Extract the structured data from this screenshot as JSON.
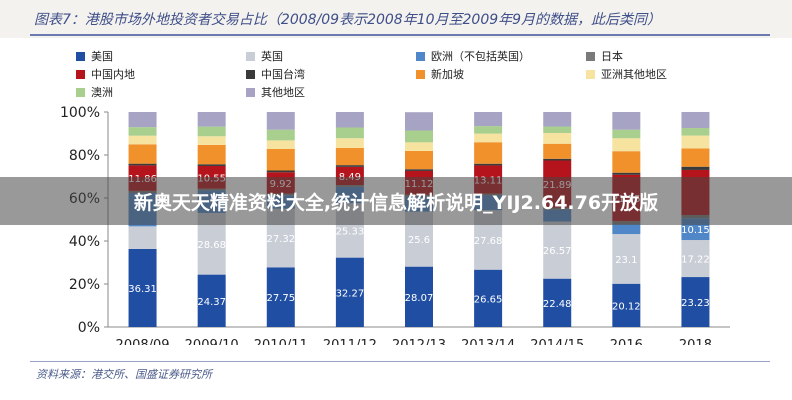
{
  "figure": {
    "title": "图表7：港股市场外地投资者交易占比（2008/09表示2008年10月至2009年9月的数据，此后类同）",
    "source": "资料来源：港交所、国盛证券研究所"
  },
  "watermark": {
    "text": "新奥天天精准资料大全,统计信息解析说明_YIJ2.64.76开放版"
  },
  "chart_data": {
    "type": "bar",
    "stacked": true,
    "categories": [
      "2008/09",
      "2009/10",
      "2010/11",
      "2011/12",
      "2012/13",
      "2013/14",
      "2014/15",
      "2016",
      "2018"
    ],
    "ylim": [
      0,
      100
    ],
    "yticks": [
      "0%",
      "20%",
      "40%",
      "60%",
      "80%",
      "100%"
    ],
    "grid": false,
    "legend_position": "top",
    "series": [
      {
        "name": "美国",
        "color": "#1f4ea3",
        "values": [
          36.31,
          24.37,
          27.75,
          32.27,
          28.07,
          26.65,
          22.48,
          20.12,
          23.23
        ],
        "labels": [
          "36.31",
          "24.37",
          "27.75",
          "32.27",
          "28.07",
          "26.65",
          "22.48",
          "20.12",
          "23.23"
        ]
      },
      {
        "name": "英国",
        "color": "#c9cdd6",
        "values": [
          10.5,
          28.68,
          27.32,
          25.33,
          25.6,
          27.68,
          26.57,
          23.1,
          17.22
        ],
        "labels": [
          "",
          "28.68",
          "27.32",
          "25.33",
          "25.6",
          "27.68",
          "26.57",
          "23.1",
          "17.22"
        ]
      },
      {
        "name": "欧洲（不包括英国）",
        "color": "#4f87c9",
        "values": [
          15.5,
          10.5,
          6.2,
          7.6,
          7.0,
          6.8,
          5.5,
          4.5,
          10.15
        ],
        "labels": [
          "",
          "",
          "",
          "",
          "",
          "",
          "",
          "",
          "10.15"
        ]
      },
      {
        "name": "日本",
        "color": "#7a7a7a",
        "values": [
          1.0,
          0.8,
          0.8,
          0.8,
          0.8,
          0.9,
          1.0,
          1.5,
          1.5
        ],
        "labels": [
          "",
          "",
          "",
          "",
          "",
          "",
          "",
          "",
          ""
        ]
      },
      {
        "name": "中国内地",
        "color": "#b5141c",
        "values": [
          11.86,
          10.55,
          9.92,
          8.49,
          11.12,
          13.11,
          21.89,
          21.55,
          20.95
        ],
        "labels": [
          "11.86",
          "10.55",
          "9.92",
          "8.49",
          "11.12",
          "13.11",
          "21.89",
          "21.55",
          ""
        ]
      },
      {
        "name": "中国台湾",
        "color": "#3a3a3a",
        "values": [
          0.8,
          0.8,
          0.8,
          0.8,
          0.8,
          0.8,
          0.8,
          1.0,
          1.5
        ],
        "labels": [
          "",
          "",
          "",
          "",
          "",
          "",
          "",
          "",
          ""
        ]
      },
      {
        "name": "新加坡",
        "color": "#f0912b",
        "values": [
          9.0,
          9.0,
          10.0,
          8.0,
          8.5,
          10.0,
          7.0,
          10.0,
          8.5
        ],
        "labels": [
          "",
          "",
          "",
          "",
          "",
          "",
          "",
          "",
          ""
        ]
      },
      {
        "name": "亚洲其他地区",
        "color": "#f7e3a0",
        "values": [
          4.0,
          4.0,
          4.0,
          4.5,
          4.0,
          4.0,
          5.0,
          6.0,
          6.0
        ],
        "labels": [
          "",
          "",
          "",
          "",
          "",
          "",
          "",
          "",
          ""
        ]
      },
      {
        "name": "澳洲",
        "color": "#a9cf8f",
        "values": [
          4.0,
          4.5,
          5.0,
          5.0,
          5.5,
          3.5,
          3.0,
          4.0,
          3.5
        ],
        "labels": [
          "",
          "",
          "",
          "",
          "",
          "",
          "",
          "",
          ""
        ]
      },
      {
        "name": "其他地区",
        "color": "#a7a3c4",
        "values": [
          7.03,
          6.8,
          8.21,
          7.21,
          8.51,
          6.56,
          6.76,
          8.23,
          7.46
        ],
        "labels": [
          "",
          "",
          "",
          "",
          "",
          "",
          "",
          "",
          ""
        ]
      }
    ]
  }
}
